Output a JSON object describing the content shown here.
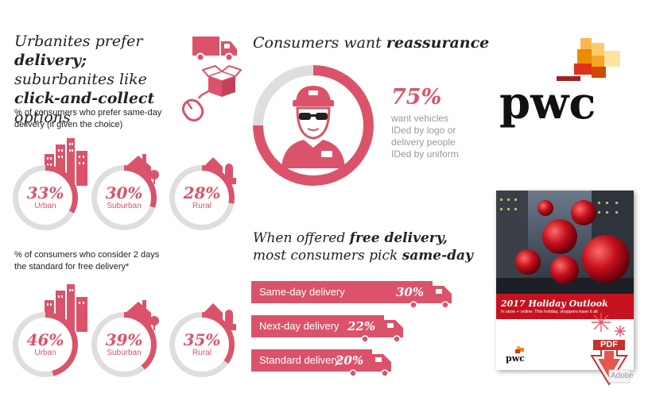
{
  "colors": {
    "accent": "#db536a",
    "ring_bg": "#dedede",
    "text_pink": "#db536a"
  },
  "left": {
    "headline": {
      "l1a": "Urbanites prefer ",
      "l1b": "delivery;",
      "l2": "suburbanites like",
      "l3a": "click-and-collect",
      "l3b": " options"
    },
    "section1_title": {
      "l1": "% of consumers who prefer same-day",
      "l2": "delivery (if given the choice)"
    },
    "section2_title": {
      "l1": "% of consumers who consider 2 days",
      "l2": "the standard for free delivery*"
    },
    "icons": [
      "truck-icon",
      "box-icon",
      "mouse-icon",
      "city-icon",
      "house-icon",
      "barn-icon"
    ]
  },
  "middle": {
    "reassurance_title": {
      "a": "Consumers want ",
      "b": "reassurance"
    },
    "reassurance_pct": "75%",
    "reassurance_text": [
      "want vehicles",
      "IDed by logo or",
      "delivery people",
      "IDed by uniform"
    ],
    "reassurance_value": 75,
    "free_delivery_title": {
      "l1a": "When offered ",
      "l1b": "free delivery,",
      "l2a": "most consumers pick ",
      "l2b": "same-day"
    }
  },
  "brand": {
    "logo_text": "pwc"
  },
  "report": {
    "title": "2017 Holiday Outlook",
    "subtitle": "In store + online: This holiday, shoppers have it all",
    "footer_logo": "pwc",
    "pdf_label": "PDF",
    "adobe_label": "Adobe"
  },
  "chart_data": [
    {
      "type": "pie",
      "title": "% of consumers who prefer same-day delivery (if given the choice)",
      "categories": [
        "Urban",
        "Suburban",
        "Rural"
      ],
      "values": [
        33,
        30,
        28
      ],
      "labels": [
        "33%",
        "30%",
        "28%"
      ]
    },
    {
      "type": "pie",
      "title": "% of consumers who consider 2 days the standard for free delivery*",
      "categories": [
        "Urban",
        "Suburban",
        "Rural"
      ],
      "values": [
        46,
        39,
        35
      ],
      "labels": [
        "46%",
        "39%",
        "35%"
      ]
    },
    {
      "type": "bar",
      "title": "When offered free delivery, most consumers pick same-day",
      "categories": [
        "Same-day delivery",
        "Next-day delivery",
        "Standard delivery"
      ],
      "values": [
        30,
        22,
        20
      ],
      "labels": [
        "30%",
        "22%",
        "20%"
      ]
    }
  ]
}
